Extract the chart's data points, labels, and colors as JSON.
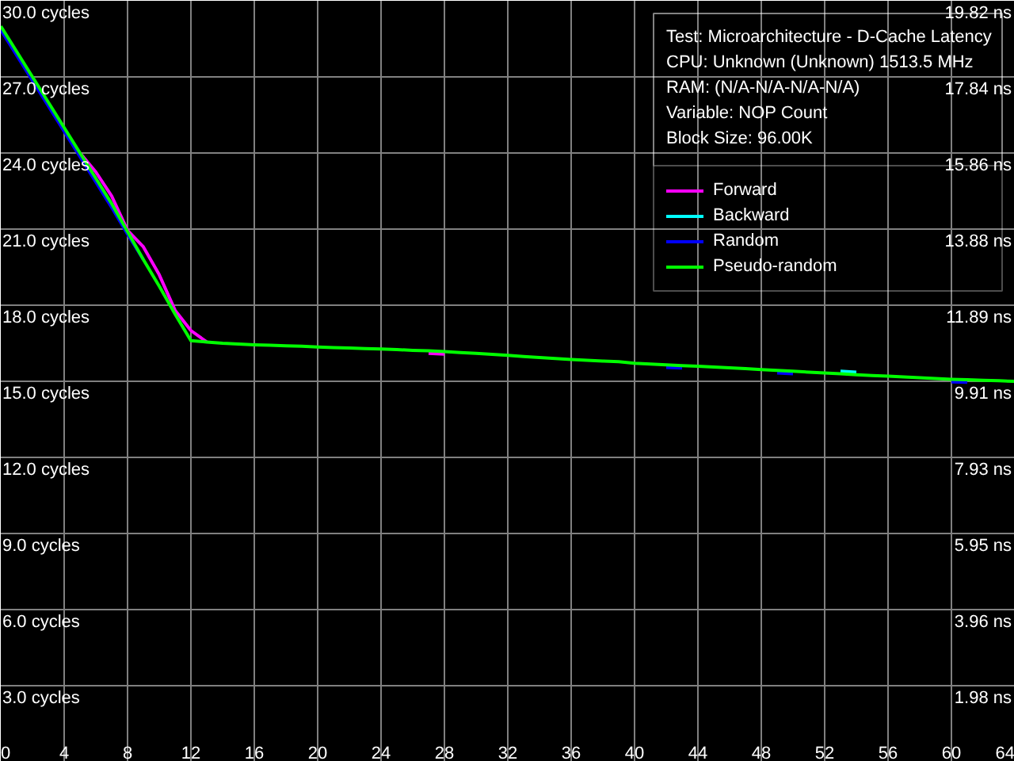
{
  "chart_data": {
    "type": "line",
    "annotations": [
      "Test: Microarchitecture - D-Cache Latency",
      "CPU: Unknown (Unknown) 1513.5 MHz",
      "RAM:  (N/A-N/A-N/A-N/A)",
      "Variable: NOP Count",
      "Block Size: 96.00K"
    ],
    "x": [
      0,
      1,
      2,
      3,
      4,
      5,
      6,
      7,
      8,
      9,
      10,
      11,
      12,
      13,
      14,
      15,
      16,
      17,
      18,
      19,
      20,
      21,
      22,
      23,
      24,
      25,
      26,
      27,
      28,
      29,
      30,
      31,
      32,
      33,
      34,
      35,
      36,
      37,
      38,
      39,
      40,
      41,
      42,
      43,
      44,
      45,
      46,
      47,
      48,
      49,
      50,
      51,
      52,
      53,
      54,
      55,
      56,
      57,
      58,
      59,
      60,
      61,
      62,
      63,
      64
    ],
    "series": [
      {
        "name": "Forward",
        "color": "#ff00ff",
        "values": [
          null,
          null,
          null,
          null,
          null,
          24.0,
          23.25,
          22.3,
          20.95,
          20.3,
          19.2,
          17.8,
          17.0,
          16.55,
          null,
          null,
          null,
          null,
          null,
          null,
          null,
          null,
          null,
          null,
          null,
          null,
          null,
          16.1,
          16.07,
          null,
          null,
          null,
          null,
          null,
          null,
          null,
          null,
          null,
          null,
          null,
          null,
          null,
          null,
          null,
          null,
          null,
          null,
          null,
          null,
          null,
          null,
          null,
          null,
          null,
          null,
          null,
          null,
          null,
          null,
          null,
          null,
          null,
          null,
          null,
          null
        ]
      },
      {
        "name": "Backward",
        "color": "#00ffff",
        "values": [
          null,
          null,
          null,
          null,
          null,
          null,
          null,
          null,
          null,
          null,
          null,
          null,
          null,
          null,
          null,
          null,
          null,
          null,
          null,
          null,
          null,
          null,
          null,
          null,
          null,
          null,
          null,
          null,
          null,
          null,
          null,
          null,
          null,
          null,
          null,
          null,
          null,
          null,
          null,
          null,
          null,
          null,
          null,
          null,
          null,
          null,
          null,
          null,
          null,
          null,
          null,
          null,
          null,
          15.4,
          15.36,
          null,
          null,
          null,
          null,
          null,
          null,
          null,
          null,
          null,
          null
        ]
      },
      {
        "name": "Random",
        "color": "#0000ff",
        "values": [
          28.85,
          27.85,
          26.85,
          25.85,
          24.85,
          23.85,
          22.85,
          21.85,
          20.8,
          19.8,
          null,
          null,
          null,
          null,
          null,
          null,
          null,
          null,
          null,
          null,
          null,
          null,
          null,
          null,
          null,
          null,
          null,
          null,
          null,
          null,
          null,
          null,
          null,
          null,
          null,
          null,
          null,
          null,
          null,
          null,
          null,
          null,
          15.55,
          15.52,
          null,
          null,
          null,
          null,
          null,
          15.33,
          15.3,
          null,
          null,
          null,
          null,
          null,
          null,
          null,
          null,
          null,
          14.98,
          14.96,
          null,
          null,
          null
        ]
      },
      {
        "name": "Pseudo-random",
        "color": "#00ff00",
        "values": [
          29.0,
          28.0,
          27.0,
          26.0,
          25.0,
          24.0,
          23.0,
          22.0,
          20.9,
          19.8,
          18.75,
          17.65,
          16.6,
          16.55,
          16.5,
          16.47,
          16.44,
          16.42,
          16.4,
          16.38,
          16.35,
          16.33,
          16.31,
          16.29,
          16.27,
          16.25,
          16.22,
          16.2,
          16.17,
          16.13,
          16.1,
          16.06,
          16.02,
          15.98,
          15.94,
          15.9,
          15.86,
          15.83,
          15.8,
          15.77,
          15.71,
          15.68,
          15.65,
          15.62,
          15.59,
          15.56,
          15.53,
          15.5,
          15.46,
          15.43,
          15.4,
          15.36,
          15.33,
          15.3,
          15.26,
          15.23,
          15.2,
          15.17,
          15.14,
          15.11,
          15.08,
          15.06,
          15.04,
          15.02,
          15.0
        ]
      }
    ],
    "xlim": [
      0,
      64
    ],
    "xticks": [
      0,
      4,
      8,
      12,
      16,
      20,
      24,
      28,
      32,
      36,
      40,
      44,
      48,
      52,
      56,
      60,
      64
    ],
    "ylim": [
      0,
      30
    ],
    "yticks": [
      {
        "value": 3,
        "label": "3.0 cycles"
      },
      {
        "value": 6,
        "label": "6.0 cycles"
      },
      {
        "value": 9,
        "label": "9.0 cycles"
      },
      {
        "value": 12,
        "label": "12.0 cycles"
      },
      {
        "value": 15,
        "label": "15.0 cycles"
      },
      {
        "value": 18,
        "label": "18.0 cycles"
      },
      {
        "value": 21,
        "label": "21.0 cycles"
      },
      {
        "value": 24,
        "label": "24.0 cycles"
      },
      {
        "value": 27,
        "label": "27.0 cycles"
      },
      {
        "value": 30,
        "label": "30.0 cycles"
      }
    ],
    "y2lim": [
      0,
      19.82
    ],
    "y2ticks": [
      {
        "value": 1.98,
        "label": "1.98 ns"
      },
      {
        "value": 3.96,
        "label": "3.96 ns"
      },
      {
        "value": 5.95,
        "label": "5.95 ns"
      },
      {
        "value": 7.93,
        "label": "7.93 ns"
      },
      {
        "value": 9.91,
        "label": "9.91 ns"
      },
      {
        "value": 11.89,
        "label": "11.89 ns"
      },
      {
        "value": 13.88,
        "label": "13.88 ns"
      },
      {
        "value": 15.86,
        "label": "15.86 ns"
      },
      {
        "value": 17.84,
        "label": "17.84 ns"
      },
      {
        "value": 19.82,
        "label": "19.82 ns"
      }
    ],
    "grid": true,
    "legend": "top right"
  }
}
